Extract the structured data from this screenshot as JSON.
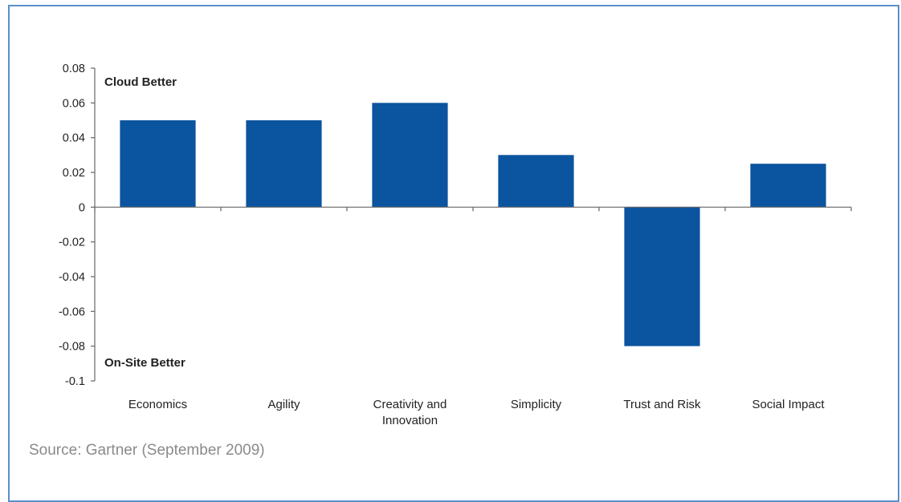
{
  "source_text": "Source: Gartner (September 2009)",
  "colors": {
    "bar": "#0b549f",
    "axis": "#666666",
    "frame": "#5b8fc9",
    "source_text": "#8a8a8a"
  },
  "chart_data": {
    "type": "bar",
    "categories": [
      "Economics",
      "Agility",
      "Creativity and Innovation",
      "Simplicity",
      "Trust and Risk",
      "Social Impact"
    ],
    "category_lines": [
      [
        "Economics"
      ],
      [
        "Agility"
      ],
      [
        "Creativity and",
        "Innovation"
      ],
      [
        "Simplicity"
      ],
      [
        "Trust and Risk"
      ],
      [
        "Social Impact"
      ]
    ],
    "values": [
      0.05,
      0.05,
      0.06,
      0.03,
      -0.08,
      0.025
    ],
    "ylim": [
      -0.1,
      0.08
    ],
    "yticks": [
      0.08,
      0.06,
      0.04,
      0.02,
      0,
      -0.02,
      -0.04,
      -0.06,
      -0.08,
      -0.1
    ],
    "ytick_labels": [
      "0.08",
      "0.06",
      "0.04",
      "0.02",
      "0",
      "-0.02",
      "-0.04",
      "-0.06",
      "-0.08",
      "-0.1"
    ],
    "annotations": {
      "top": "Cloud Better",
      "bottom": "On-Site Better"
    },
    "grid": false,
    "legend": "none"
  }
}
